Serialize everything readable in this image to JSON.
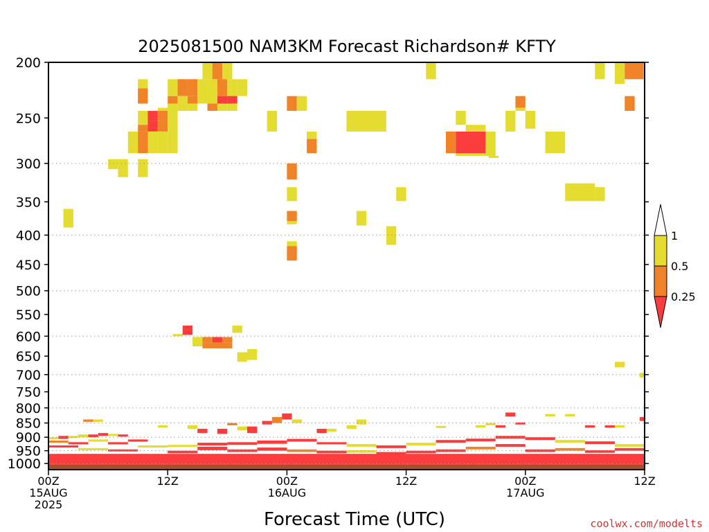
{
  "chart_data": {
    "type": "heatmap",
    "title": "2025081500 NAM3KM Forecast Richardson# KFTY",
    "xlabel": "Forecast Time (UTC)",
    "ylabel": "",
    "credit": "coolwx.com/modelts",
    "x_unit": "forecast hour",
    "xlim": [
      0,
      60
    ],
    "ylim_hpa": [
      200,
      1025
    ],
    "y_log_scale": true,
    "grid": true,
    "y_ticks": [
      200,
      250,
      300,
      350,
      400,
      450,
      500,
      550,
      600,
      650,
      700,
      750,
      800,
      850,
      900,
      950,
      1000
    ],
    "y_gridlines": [
      300,
      400,
      500,
      600,
      700,
      800,
      850,
      900,
      950,
      1000
    ],
    "x_ticks": [
      {
        "hour": 0,
        "line1": "00Z",
        "line2": "15AUG",
        "line3": "2025"
      },
      {
        "hour": 12,
        "line1": "12Z",
        "line2": "",
        "line3": ""
      },
      {
        "hour": 24,
        "line1": "00Z",
        "line2": "16AUG",
        "line3": ""
      },
      {
        "hour": 36,
        "line1": "12Z",
        "line2": "",
        "line3": ""
      },
      {
        "hour": 48,
        "line1": "00Z",
        "line2": "17AUG",
        "line3": ""
      },
      {
        "hour": 60,
        "line1": "12Z",
        "line2": "",
        "line3": ""
      }
    ],
    "colorbar": {
      "levels": [
        "1",
        "0.5",
        "0.25"
      ],
      "bins": [
        {
          "label": "> 1",
          "color": "#ffffff"
        },
        {
          "label": "0.5 - 1",
          "color": "#e5dc32"
        },
        {
          "label": "0.25 - 0.5",
          "color": "#f08228"
        },
        {
          "label": "< 0.25",
          "color": "#fa3c3c"
        }
      ]
    },
    "colors": {
      "Y": "#e5dc32",
      "O": "#f08228",
      "R": "#fa3c3c",
      "ground": "#a0522d"
    },
    "ground_top_hpa": 1005,
    "cells_note": "hour start, hour end, pressure top (hPa), pressure bottom (hPa), category: Y=0.5-1, O=0.25-0.5, R=<0.25",
    "cells": [
      [
        15.5,
        16.5,
        200,
        214,
        "Y"
      ],
      [
        16.5,
        17.5,
        200,
        214,
        "O"
      ],
      [
        17.5,
        18.5,
        200,
        214,
        "Y"
      ],
      [
        9,
        10,
        214,
        222,
        "Y"
      ],
      [
        12,
        13,
        214,
        229,
        "Y"
      ],
      [
        13,
        14,
        214,
        229,
        "O"
      ],
      [
        14,
        15,
        214,
        229,
        "O"
      ],
      [
        15,
        16,
        214,
        236,
        "Y"
      ],
      [
        16,
        17,
        214,
        236,
        "Y"
      ],
      [
        17,
        18,
        214,
        229,
        "O"
      ],
      [
        18,
        19,
        214,
        236,
        "Y"
      ],
      [
        19,
        20,
        214,
        229,
        "Y"
      ],
      [
        9,
        10,
        222,
        236,
        "O"
      ],
      [
        12,
        13,
        229,
        236,
        "O"
      ],
      [
        13,
        14,
        229,
        236,
        "Y"
      ],
      [
        14,
        15,
        229,
        236,
        "O"
      ],
      [
        17,
        18,
        229,
        236,
        "R"
      ],
      [
        18,
        19,
        229,
        236,
        "R"
      ],
      [
        12,
        13,
        236,
        243,
        "Y"
      ],
      [
        13,
        14,
        236,
        243,
        "Y"
      ],
      [
        14,
        15,
        236,
        243,
        "Y"
      ],
      [
        16,
        17,
        236,
        243,
        "O"
      ],
      [
        17,
        18,
        236,
        243,
        "Y"
      ],
      [
        18,
        19,
        236,
        243,
        "Y"
      ],
      [
        11,
        12,
        240,
        250,
        "Y"
      ],
      [
        9,
        10,
        243,
        257,
        "Y"
      ],
      [
        10,
        11,
        243,
        253,
        "R"
      ],
      [
        11,
        12,
        243,
        253,
        "O"
      ],
      [
        10,
        11,
        253,
        264,
        "R"
      ],
      [
        11,
        12,
        253,
        264,
        "O"
      ],
      [
        12,
        13,
        243,
        288,
        "Y"
      ],
      [
        9,
        10,
        257,
        264,
        "O"
      ],
      [
        8,
        9,
        264,
        288,
        "Y"
      ],
      [
        9,
        10,
        264,
        288,
        "O"
      ],
      [
        10,
        11,
        264,
        288,
        "Y"
      ],
      [
        11,
        12,
        264,
        288,
        "Y"
      ],
      [
        22,
        23,
        243,
        264,
        "Y"
      ],
      [
        24,
        25,
        229,
        243,
        "O"
      ],
      [
        25,
        26,
        229,
        243,
        "Y"
      ],
      [
        26,
        27,
        264,
        272,
        "Y"
      ],
      [
        26,
        27,
        272,
        288,
        "O"
      ],
      [
        30,
        34,
        243,
        264,
        "Y"
      ],
      [
        38,
        39,
        200,
        214,
        "Y"
      ],
      [
        40,
        41,
        264,
        288,
        "O"
      ],
      [
        41,
        44,
        264,
        291,
        "R"
      ],
      [
        44,
        45,
        264,
        291,
        "Y"
      ],
      [
        41,
        42,
        243,
        257,
        "Y"
      ],
      [
        42,
        43,
        257,
        264,
        "Y"
      ],
      [
        43,
        44,
        257,
        264,
        "Y"
      ],
      [
        41,
        44,
        288,
        291,
        "Y"
      ],
      [
        44.3,
        45.3,
        291,
        291,
        "Y"
      ],
      [
        46,
        47,
        243,
        264,
        "Y"
      ],
      [
        47,
        48,
        229,
        240,
        "O"
      ],
      [
        47,
        48,
        240,
        243,
        "Y"
      ],
      [
        48,
        49,
        243,
        261,
        "Y"
      ],
      [
        50,
        52,
        264,
        288,
        "Y"
      ],
      [
        55,
        56,
        200,
        214,
        "Y"
      ],
      [
        57,
        58,
        200,
        218,
        "Y"
      ],
      [
        58,
        59.9,
        200,
        214,
        "O"
      ],
      [
        58,
        59,
        229,
        243,
        "O"
      ],
      [
        6,
        7,
        295,
        307,
        "Y"
      ],
      [
        7,
        8,
        295,
        317,
        "Y"
      ],
      [
        9,
        10,
        295,
        317,
        "Y"
      ],
      [
        24,
        25,
        300,
        320,
        "O"
      ],
      [
        24,
        25,
        330,
        349,
        "Y"
      ],
      [
        24,
        25,
        363,
        378,
        "O"
      ],
      [
        24,
        25,
        378,
        383,
        "Y"
      ],
      [
        35,
        36,
        330,
        349,
        "Y"
      ],
      [
        52,
        55,
        325,
        349,
        "Y"
      ],
      [
        55,
        56,
        330,
        349,
        "Y"
      ],
      [
        1.5,
        2.5,
        360,
        388,
        "Y"
      ],
      [
        31,
        32,
        363,
        385,
        "Y"
      ],
      [
        34,
        35,
        386,
        416,
        "Y"
      ],
      [
        24,
        25,
        410,
        418,
        "Y"
      ],
      [
        24,
        25,
        418,
        443,
        "O"
      ],
      [
        12.5,
        13.5,
        595,
        597,
        "Y"
      ],
      [
        13.5,
        14.5,
        575,
        597,
        "R"
      ],
      [
        14.5,
        15.5,
        602,
        625,
        "Y"
      ],
      [
        15.5,
        16.5,
        602,
        615,
        "O"
      ],
      [
        16.5,
        17.5,
        602,
        625,
        "R"
      ],
      [
        17.5,
        18.5,
        602,
        615,
        "O"
      ],
      [
        15.5,
        18.5,
        615,
        630,
        "O"
      ],
      [
        18.5,
        19.5,
        575,
        592,
        "Y"
      ],
      [
        19,
        20,
        640,
        665,
        "Y"
      ],
      [
        20,
        21,
        632,
        660,
        "Y"
      ],
      [
        57,
        58,
        665,
        680,
        "Y"
      ],
      [
        59.5,
        60,
        695,
        708,
        "Y"
      ],
      [
        3.5,
        4.5,
        838,
        846,
        "O"
      ],
      [
        4.5,
        5.5,
        838,
        846,
        "Y"
      ],
      [
        22.5,
        23.5,
        830,
        850,
        "O"
      ],
      [
        23.5,
        24.5,
        818,
        838,
        "R"
      ],
      [
        24.5,
        25.5,
        838,
        850,
        "Y"
      ],
      [
        21.5,
        22.5,
        843,
        855,
        "R"
      ],
      [
        31,
        32,
        838,
        855,
        "Y"
      ],
      [
        44,
        45,
        850,
        858,
        "Y"
      ],
      [
        43,
        44,
        858,
        866,
        "Y"
      ],
      [
        39,
        40,
        860,
        866,
        "Y"
      ],
      [
        45,
        46,
        858,
        866,
        "R"
      ],
      [
        46,
        47,
        815,
        828,
        "R"
      ],
      [
        47,
        48,
        848,
        855,
        "R"
      ],
      [
        50,
        51,
        820,
        828,
        "Y"
      ],
      [
        52,
        53,
        820,
        828,
        "Y"
      ],
      [
        54,
        55,
        858,
        866,
        "R"
      ],
      [
        56,
        57,
        858,
        866,
        "R"
      ],
      [
        57,
        58,
        858,
        866,
        "Y"
      ],
      [
        59.5,
        60,
        830,
        843,
        "R"
      ],
      [
        11,
        12,
        858,
        866,
        "Y"
      ],
      [
        14,
        15,
        858,
        870,
        "Y"
      ],
      [
        15,
        16,
        870,
        885,
        "R"
      ],
      [
        17,
        18,
        870,
        888,
        "R"
      ],
      [
        19,
        20,
        862,
        875,
        "Y"
      ],
      [
        20,
        21,
        862,
        885,
        "R"
      ],
      [
        18,
        19,
        850,
        858,
        "O"
      ],
      [
        27,
        28,
        870,
        885,
        "R"
      ],
      [
        28,
        29,
        870,
        880,
        "Y"
      ],
      [
        30,
        31,
        858,
        870,
        "Y"
      ],
      [
        0,
        1,
        900,
        906,
        "Y"
      ],
      [
        1,
        2,
        895,
        906,
        "R"
      ],
      [
        2,
        3,
        895,
        903,
        "Y"
      ],
      [
        3,
        4,
        890,
        900,
        "Y"
      ],
      [
        4,
        5,
        890,
        900,
        "R"
      ],
      [
        5,
        6,
        885,
        895,
        "R"
      ],
      [
        6,
        7,
        888,
        895,
        "Y"
      ],
      [
        7,
        8,
        890,
        898,
        "R"
      ],
      [
        0,
        2,
        912,
        920,
        "O"
      ],
      [
        2,
        4,
        918,
        926,
        "R"
      ],
      [
        4,
        6,
        908,
        916,
        "Y"
      ],
      [
        6,
        8,
        918,
        926,
        "R"
      ],
      [
        8,
        10,
        908,
        916,
        "R"
      ],
      [
        0,
        3,
        930,
        938,
        "R"
      ],
      [
        3,
        6,
        940,
        948,
        "Y"
      ],
      [
        6,
        9,
        945,
        953,
        "R"
      ],
      [
        9,
        12,
        930,
        938,
        "Y"
      ],
      [
        12,
        15,
        928,
        936,
        "Y"
      ],
      [
        15,
        18,
        920,
        930,
        "R"
      ],
      [
        18,
        21,
        918,
        928,
        "R"
      ],
      [
        21,
        24,
        912,
        924,
        "R"
      ],
      [
        12,
        15,
        950,
        960,
        "R"
      ],
      [
        15,
        18,
        935,
        948,
        "R"
      ],
      [
        18,
        21,
        945,
        955,
        "R"
      ],
      [
        21,
        24,
        938,
        950,
        "R"
      ],
      [
        24,
        27,
        906,
        916,
        "R"
      ],
      [
        27,
        30,
        918,
        926,
        "R"
      ],
      [
        30,
        33,
        925,
        935,
        "Y"
      ],
      [
        33,
        36,
        930,
        940,
        "R"
      ],
      [
        24,
        27,
        945,
        955,
        "O"
      ],
      [
        27,
        30,
        950,
        960,
        "R"
      ],
      [
        30,
        33,
        948,
        958,
        "Y"
      ],
      [
        33,
        36,
        955,
        962,
        "R"
      ],
      [
        36,
        39,
        920,
        930,
        "Y"
      ],
      [
        39,
        42,
        910,
        920,
        "R"
      ],
      [
        42,
        45,
        905,
        915,
        "R"
      ],
      [
        45,
        48,
        895,
        905,
        "R"
      ],
      [
        36,
        39,
        950,
        960,
        "R"
      ],
      [
        39,
        42,
        945,
        955,
        "R"
      ],
      [
        42,
        45,
        935,
        945,
        "O"
      ],
      [
        45,
        48,
        925,
        935,
        "R"
      ],
      [
        48,
        51,
        900,
        910,
        "R"
      ],
      [
        51,
        54,
        910,
        920,
        "Y"
      ],
      [
        54,
        57,
        915,
        925,
        "R"
      ],
      [
        57,
        60,
        925,
        935,
        "Y"
      ],
      [
        48,
        51,
        945,
        955,
        "R"
      ],
      [
        51,
        54,
        940,
        950,
        "O"
      ],
      [
        54,
        57,
        948,
        958,
        "R"
      ],
      [
        57,
        60,
        940,
        950,
        "R"
      ],
      [
        0,
        60,
        962,
        975,
        "R"
      ],
      [
        0,
        60,
        975,
        990,
        "R"
      ],
      [
        0,
        60,
        990,
        1005,
        "R"
      ]
    ]
  }
}
